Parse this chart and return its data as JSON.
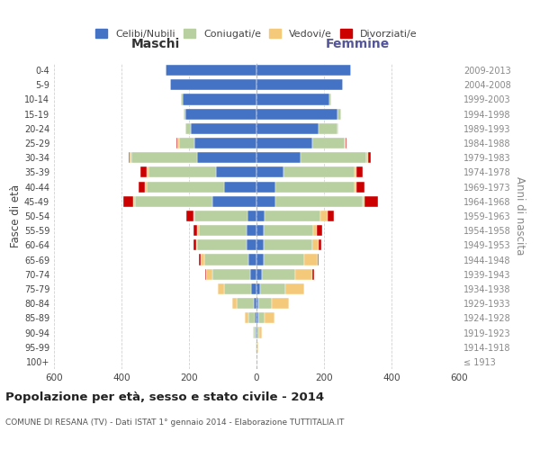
{
  "age_groups": [
    "100+",
    "95-99",
    "90-94",
    "85-89",
    "80-84",
    "75-79",
    "70-74",
    "65-69",
    "60-64",
    "55-59",
    "50-54",
    "45-49",
    "40-44",
    "35-39",
    "30-34",
    "25-29",
    "20-24",
    "15-19",
    "10-14",
    "5-9",
    "0-4"
  ],
  "birth_years": [
    "≤ 1913",
    "1914-1918",
    "1919-1923",
    "1924-1928",
    "1929-1933",
    "1934-1938",
    "1939-1943",
    "1944-1948",
    "1949-1953",
    "1954-1958",
    "1959-1963",
    "1964-1968",
    "1969-1973",
    "1974-1978",
    "1979-1983",
    "1984-1988",
    "1989-1993",
    "1994-1998",
    "1999-2003",
    "2004-2008",
    "2009-2013"
  ],
  "maschi": {
    "celibi": [
      0,
      1,
      2,
      5,
      8,
      15,
      20,
      25,
      30,
      30,
      28,
      130,
      95,
      120,
      175,
      185,
      195,
      210,
      220,
      255,
      270
    ],
    "coniugati": [
      1,
      2,
      5,
      20,
      50,
      80,
      110,
      130,
      145,
      140,
      155,
      230,
      230,
      200,
      195,
      45,
      15,
      5,
      5,
      0,
      0
    ],
    "vedovi": [
      0,
      1,
      3,
      10,
      15,
      20,
      20,
      10,
      5,
      5,
      5,
      5,
      5,
      5,
      5,
      5,
      2,
      0,
      0,
      0,
      0
    ],
    "divorziati": [
      0,
      0,
      0,
      0,
      0,
      0,
      2,
      5,
      8,
      12,
      20,
      30,
      20,
      18,
      5,
      2,
      0,
      0,
      0,
      0,
      0
    ]
  },
  "femmine": {
    "nubili": [
      0,
      1,
      2,
      4,
      5,
      10,
      15,
      20,
      20,
      22,
      25,
      55,
      55,
      80,
      130,
      165,
      185,
      240,
      215,
      255,
      280
    ],
    "coniugate": [
      1,
      2,
      5,
      20,
      40,
      75,
      100,
      120,
      145,
      145,
      165,
      260,
      235,
      210,
      195,
      95,
      55,
      10,
      5,
      0,
      0
    ],
    "vedove": [
      0,
      3,
      8,
      30,
      50,
      55,
      50,
      40,
      20,
      12,
      20,
      5,
      5,
      5,
      5,
      5,
      2,
      0,
      0,
      0,
      0
    ],
    "divorziate": [
      0,
      0,
      0,
      0,
      0,
      2,
      5,
      5,
      8,
      15,
      20,
      40,
      25,
      20,
      8,
      2,
      0,
      0,
      0,
      0,
      0
    ]
  },
  "colors": {
    "celibi_nubili": "#4472c4",
    "coniugati": "#b8cfa0",
    "vedovi": "#f5c97a",
    "divorziati": "#cc0000"
  },
  "title": "Popolazione per età, sesso e stato civile - 2014",
  "subtitle": "COMUNE DI RESANA (TV) - Dati ISTAT 1° gennaio 2014 - Elaborazione TUTTITALIA.IT",
  "xlabel_maschi": "Maschi",
  "xlabel_femmine": "Femmine",
  "ylabel_left": "Fasce di età",
  "ylabel_right": "Anni di nascita",
  "xlim": 600,
  "background_color": "#ffffff",
  "grid_color": "#cccccc",
  "legend_labels": [
    "Celibi/Nubili",
    "Coniugati/e",
    "Vedovi/e",
    "Divorziati/e"
  ]
}
